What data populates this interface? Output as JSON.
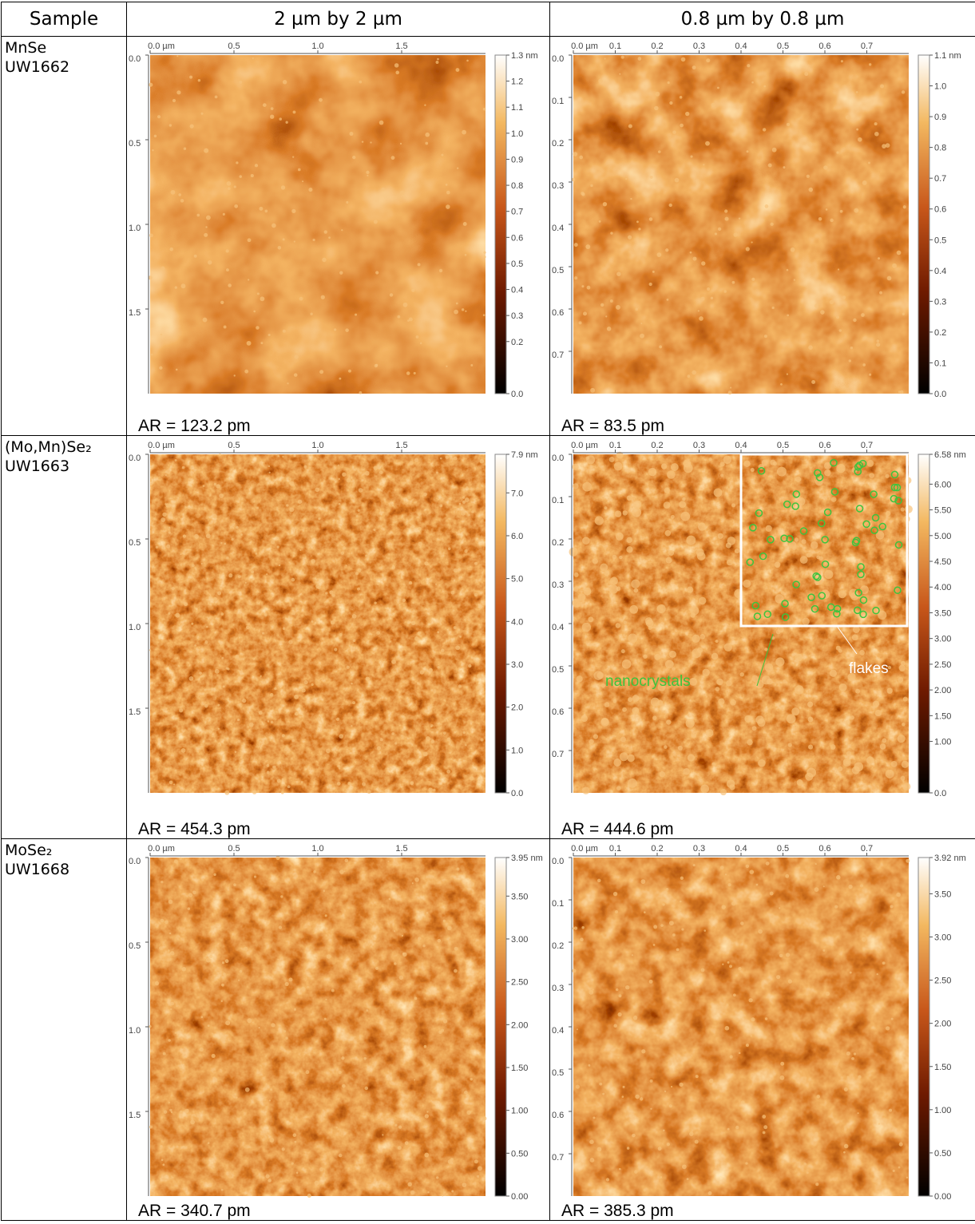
{
  "header": [
    "Sample",
    "2 µm by 2 µm",
    "0.8 µm by 0.8 µm"
  ],
  "rows": [
    {
      "sample": [
        "MnSe",
        "UW1662"
      ],
      "scans": [
        {
          "x_ticks": [
            "0.0 µm",
            "0.5",
            "1.0",
            "1.5"
          ],
          "y_ticks": [
            "0.0",
            "0.5",
            "1.0",
            "1.5"
          ],
          "scale": [
            "1.3 nm",
            "1.2",
            "1.1",
            "1.0",
            "0.9",
            "0.8",
            "0.7",
            "0.6",
            "0.5",
            "0.4",
            "0.3",
            "0.2",
            "0.0"
          ],
          "roughness": "AR = 123.2 pm"
        },
        {
          "x_ticks": [
            "0.0 µm",
            "0.1",
            "0.2",
            "0.3",
            "0.4",
            "0.5",
            "0.6",
            "0.7"
          ],
          "y_ticks": [
            "0.0",
            "0.1",
            "0.2",
            "0.3",
            "0.4",
            "0.5",
            "0.6",
            "0.7"
          ],
          "scale": [
            "1.1 nm",
            "1.0",
            "0.9",
            "0.8",
            "0.7",
            "0.6",
            "0.5",
            "0.4",
            "0.3",
            "0.2",
            "0.1",
            "0.0"
          ],
          "roughness": "AR = 83.5 pm"
        }
      ]
    },
    {
      "sample": [
        "(Mo,Mn)Se₂",
        "UW1663"
      ],
      "scans": [
        {
          "x_ticks": [
            "0.0 µm",
            "0.5",
            "1.0",
            "1.5"
          ],
          "y_ticks": [
            "0.0",
            "0.5",
            "1.0",
            "1.5"
          ],
          "scale": [
            "7.9 nm",
            "7.0",
            "6.0",
            "5.0",
            "4.0",
            "3.0",
            "2.0",
            "1.0",
            "0.0"
          ],
          "roughness": "AR = 454.3 pm"
        },
        {
          "x_ticks": [
            "0.0 µm",
            "0.1",
            "0.2",
            "0.3",
            "0.4",
            "0.5",
            "0.6",
            "0.7"
          ],
          "y_ticks": [
            "0.0",
            "0.1",
            "0.2",
            "0.3",
            "0.4",
            "0.5",
            "0.6",
            "0.7"
          ],
          "scale": [
            "6.58 nm",
            "6.00",
            "5.50",
            "5.00",
            "4.50",
            "4.00",
            "3.50",
            "3.00",
            "2.50",
            "2.00",
            "1.50",
            "1.00",
            "0.0"
          ],
          "annotations": [
            "nanocrystals",
            "flakes"
          ],
          "roughness": "AR = 444.6 pm"
        }
      ]
    },
    {
      "sample": [
        "MoSe₂",
        "UW1668"
      ],
      "scans": [
        {
          "x_ticks": [
            "0.0 µm",
            "0.5",
            "1.0",
            "1.5"
          ],
          "y_ticks": [
            "0.0",
            "0.5",
            "1.0",
            "1.5"
          ],
          "scale": [
            "3.95 nm",
            "3.50",
            "3.00",
            "2.50",
            "2.00",
            "1.50",
            "1.00",
            "0.50",
            "0.00"
          ],
          "roughness": "AR = 340.7 pm"
        },
        {
          "x_ticks": [
            "0.0 µm",
            "0.1",
            "0.2",
            "0.3",
            "0.4",
            "0.5",
            "0.6",
            "0.7"
          ],
          "y_ticks": [
            "0.0",
            "0.1",
            "0.2",
            "0.3",
            "0.4",
            "0.5",
            "0.6",
            "0.7"
          ],
          "scale": [
            "3.92 nm",
            "3.50",
            "3.00",
            "2.50",
            "2.00",
            "1.50",
            "1.00",
            "0.50",
            "0.00"
          ],
          "roughness": "AR = 385.3 pm"
        }
      ]
    }
  ]
}
